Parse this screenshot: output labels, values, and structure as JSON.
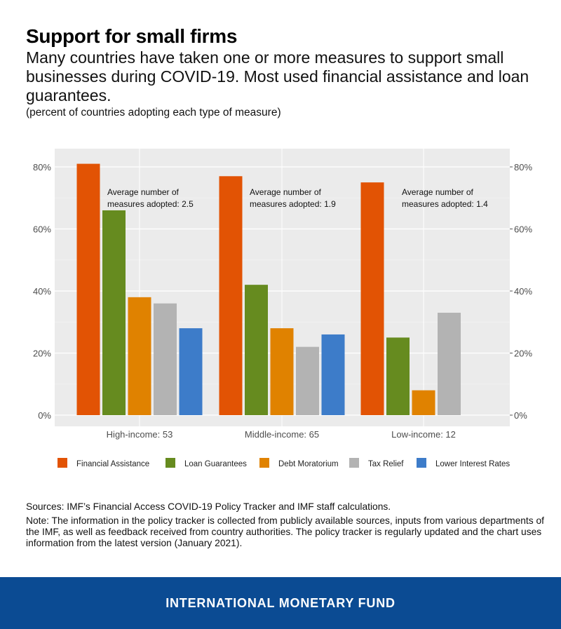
{
  "header": {
    "title": "Support for small firms",
    "subtitle": "Many countries have taken one or more measures to support small businesses during COVID-19. Most used financial assistance and loan guarantees.",
    "units": "(percent of countries adopting each type of measure)"
  },
  "chart_data": {
    "type": "bar",
    "categories": [
      "High-income: 53",
      "Middle-income: 65",
      "Low-income: 12"
    ],
    "series": [
      {
        "name": "Financial Assistance",
        "color": "#e25304",
        "values": [
          81,
          77,
          75
        ]
      },
      {
        "name": "Loan Guarantees",
        "color": "#668b1f",
        "values": [
          66,
          42,
          25
        ]
      },
      {
        "name": "Debt Moratorium",
        "color": "#e08200",
        "values": [
          38,
          28,
          8
        ]
      },
      {
        "name": "Tax Relief",
        "color": "#b3b3b3",
        "values": [
          36,
          22,
          33
        ]
      },
      {
        "name": "Lower Interest Rates",
        "color": "#3d7cc9",
        "values": [
          28,
          26,
          null
        ]
      }
    ],
    "annotations": [
      "Average number of measures adopted: 2.5",
      "Average number of measures adopted: 1.9",
      "Average number of measures adopted: 1.4"
    ],
    "yticks": [
      "0%",
      "20%",
      "40%",
      "60%",
      "80%"
    ],
    "ytick_values": [
      0,
      20,
      40,
      60,
      80
    ],
    "ylim": [
      -4,
      84
    ],
    "legend_position": "bottom",
    "grid": true
  },
  "sources": "Sources: IMF’s Financial Access COVID-19 Policy Tracker and IMF staff calculations.",
  "note": "Note: The information in the policy tracker is collected from publicly available sources, inputs from various departments of the IMF, as well as feedback received from country authorities. The policy tracker is regularly updated and the chart uses information from the latest version (January 2021).",
  "footer": "INTERNATIONAL MONETARY FUND"
}
